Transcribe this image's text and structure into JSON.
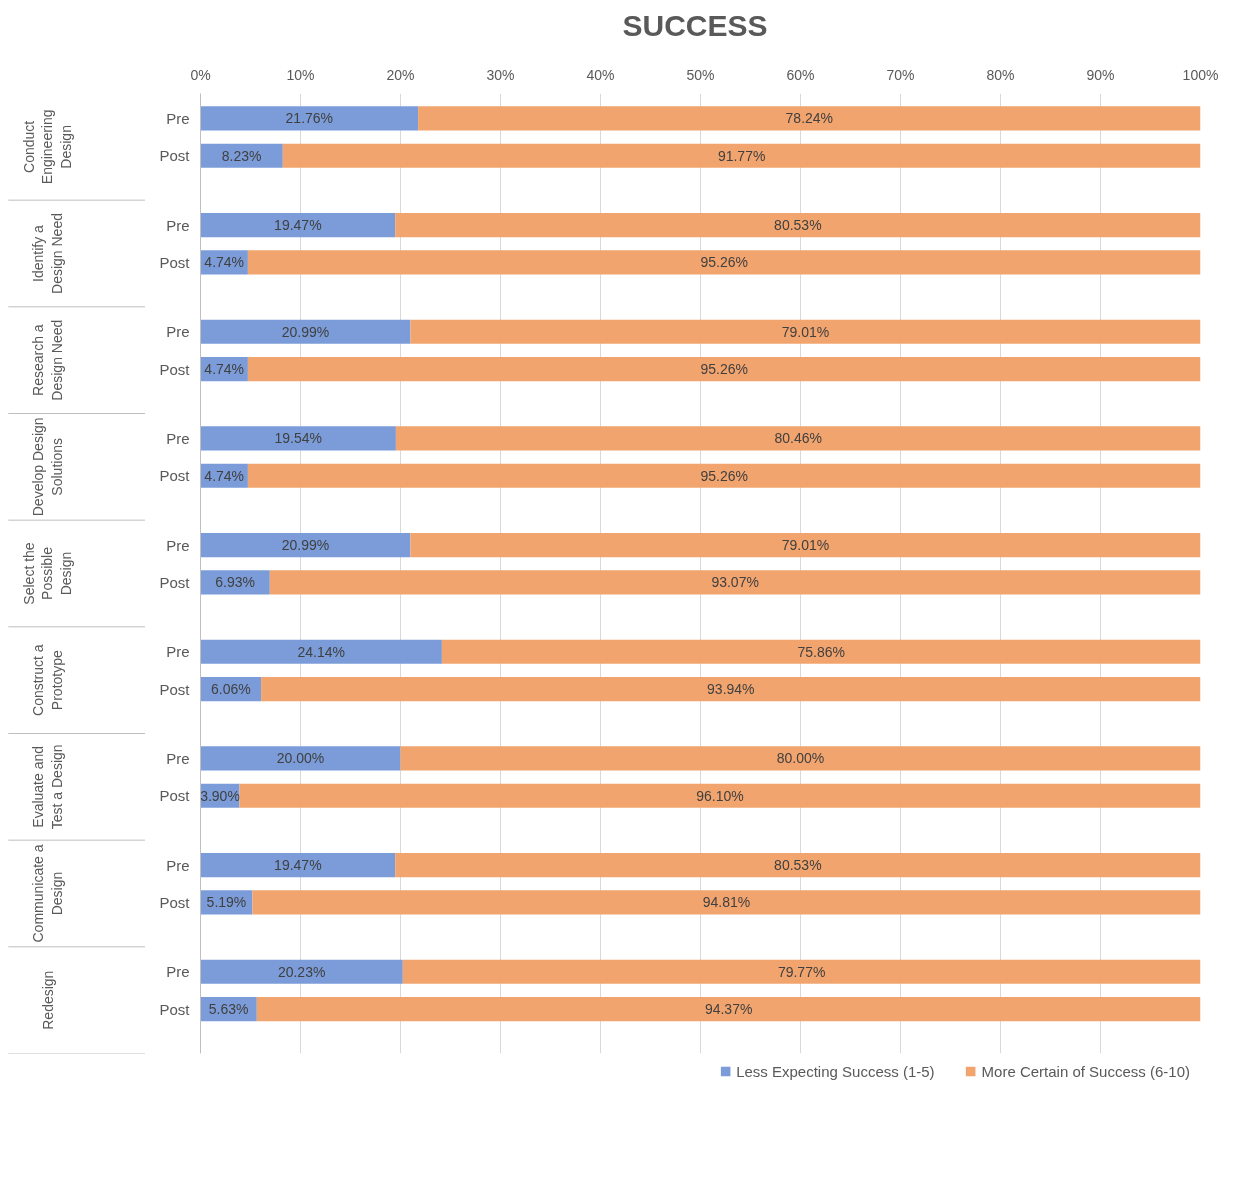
{
  "chart_data": {
    "type": "bar",
    "orientation": "horizontal",
    "stacked": true,
    "title": "SUCCESS",
    "categories": [
      "Pre",
      "Post",
      "Pre",
      "Post",
      "Pre",
      "Post",
      "Pre",
      "Post",
      "Pre",
      "Post",
      "Pre",
      "Post",
      "Pre",
      "Post",
      "Pre",
      "Post",
      "Pre",
      "Post"
    ],
    "annotations": [
      "Conduct Engineering Design",
      "Identify a Design Need",
      "Research a Design Need",
      "Develop Design Solutions",
      "Select the Possible Design",
      "Construct a Prototype",
      "Evaluate and Test a Design",
      "Communicate a Design",
      "Redesign"
    ],
    "series": [
      {
        "name": "Less Expecting Success (1-5)",
        "color": "#7b9cd8",
        "values": [
          21.76,
          8.23,
          19.47,
          4.74,
          20.99,
          4.74,
          19.54,
          4.74,
          20.99,
          6.93,
          24.14,
          6.06,
          20.0,
          3.9,
          19.47,
          5.19,
          20.23,
          5.63
        ],
        "value_labels": [
          "21.76%",
          "8.23%",
          "19.47%",
          "4.74%",
          "20.99%",
          "4.74%",
          "19.54%",
          "4.74%",
          "20.99%",
          "6.93%",
          "24.14%",
          "6.06%",
          "20.00%",
          "3.90%",
          "19.47%",
          "5.19%",
          "20.23%",
          "5.63%"
        ]
      },
      {
        "name": "More Certain of Success (6-10)",
        "color": "#f2a46e",
        "values": [
          78.24,
          91.77,
          80.53,
          95.26,
          79.01,
          95.26,
          80.46,
          95.26,
          79.01,
          93.07,
          75.86,
          93.94,
          80.0,
          96.1,
          80.53,
          94.81,
          79.77,
          94.37
        ],
        "value_labels": [
          "78.24%",
          "91.77%",
          "80.53%",
          "95.26%",
          "79.01%",
          "95.26%",
          "80.46%",
          "95.26%",
          "79.01%",
          "93.07%",
          "75.86%",
          "93.94%",
          "80.00%",
          "96.10%",
          "80.53%",
          "94.81%",
          "79.77%",
          "94.37%"
        ]
      }
    ],
    "xlim": [
      0,
      100
    ],
    "xticks": [
      {
        "value": 0,
        "label": "0%"
      },
      {
        "value": 10,
        "label": "10%"
      },
      {
        "value": 20,
        "label": "20%"
      },
      {
        "value": 30,
        "label": "30%"
      },
      {
        "value": 40,
        "label": "40%"
      },
      {
        "value": 50,
        "label": "50%"
      },
      {
        "value": 60,
        "label": "60%"
      },
      {
        "value": 70,
        "label": "70%"
      },
      {
        "value": 80,
        "label": "80%"
      },
      {
        "value": 90,
        "label": "90%"
      },
      {
        "value": 100,
        "label": "100%"
      }
    ],
    "grid": "x",
    "legend": "bottom"
  }
}
